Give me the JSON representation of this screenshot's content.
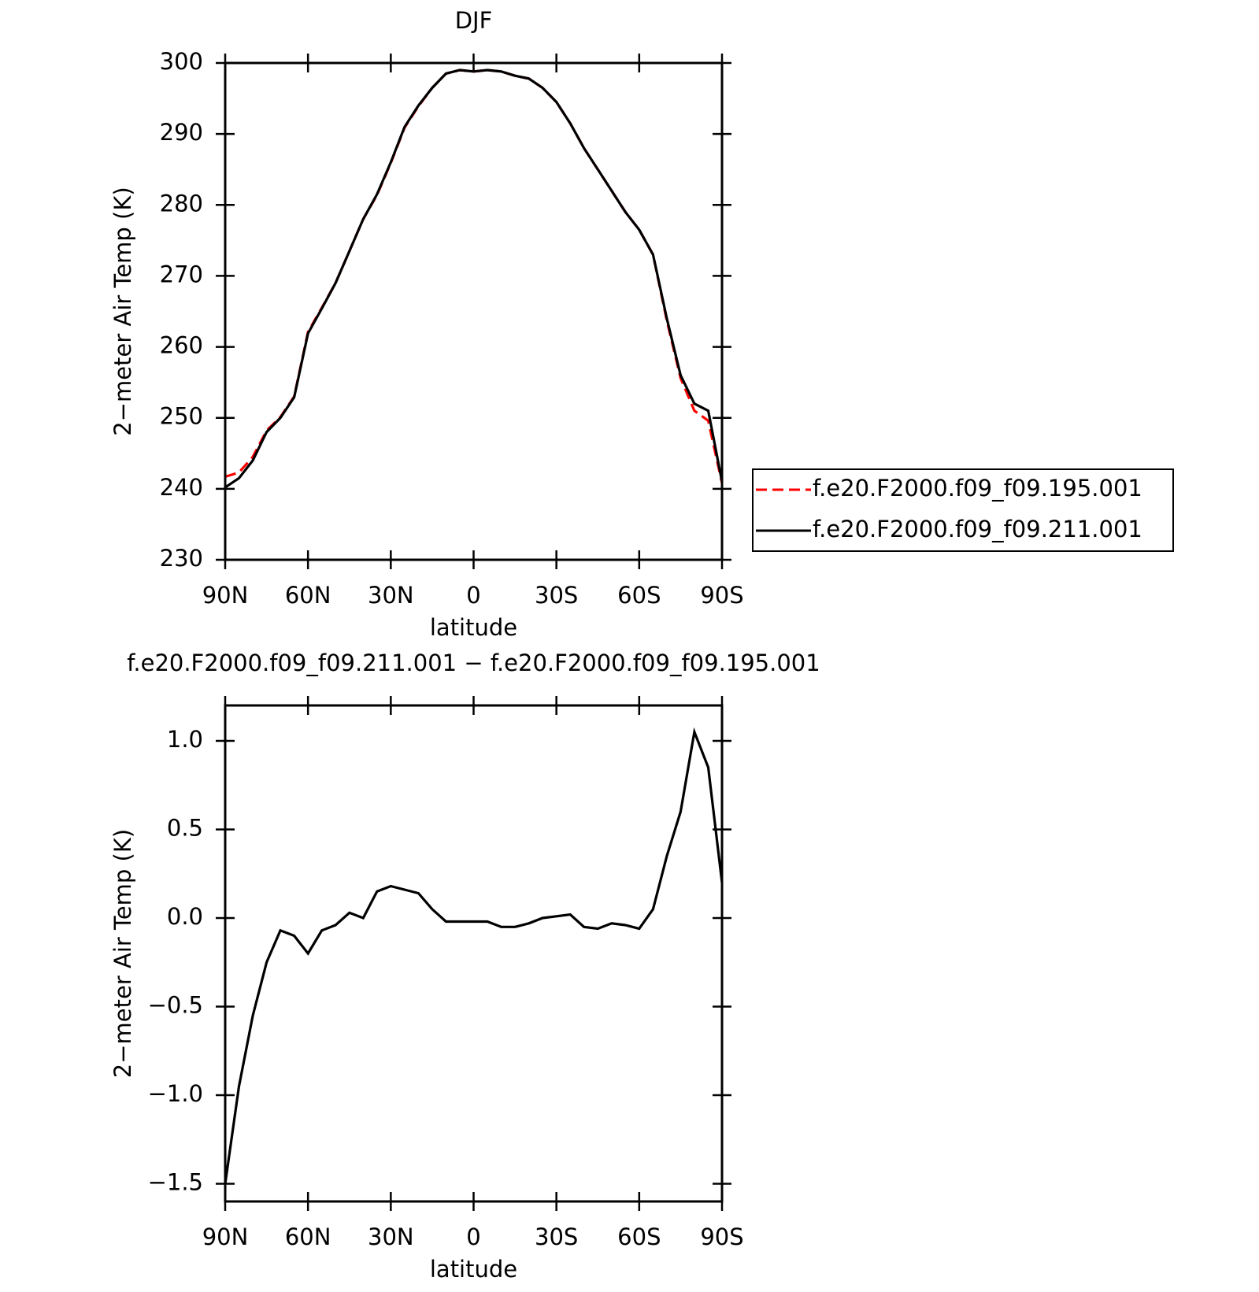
{
  "chart_data": [
    {
      "type": "line",
      "title": "DJF",
      "ylabel": "2−meter Air Temp (K)",
      "xlabel": "latitude",
      "x": [
        90,
        85,
        80,
        75,
        70,
        65,
        60,
        55,
        50,
        45,
        40,
        35,
        30,
        25,
        20,
        15,
        10,
        5,
        0,
        -5,
        -10,
        -15,
        -20,
        -25,
        -30,
        -35,
        -40,
        -45,
        -50,
        -55,
        -60,
        -65,
        -70,
        -75,
        -80,
        -85,
        -90
      ],
      "xlim": [
        90,
        -90
      ],
      "xticks": [
        {
          "value": 90,
          "label": "90N"
        },
        {
          "value": 60,
          "label": "60N"
        },
        {
          "value": 30,
          "label": "30N"
        },
        0,
        {
          "value": -30,
          "label": "30S"
        },
        {
          "value": -60,
          "label": "60S"
        },
        {
          "value": -90,
          "label": "90S"
        }
      ],
      "ylim": [
        230,
        300
      ],
      "yticks": [
        230,
        240,
        250,
        260,
        270,
        280,
        290,
        300
      ],
      "legend": "right",
      "series": [
        {
          "name": "f.e20.F2000.f09_f09.195.001",
          "color": "#ff0000",
          "linestyle": "dashed",
          "values": [
            241.7,
            242.3,
            244.5,
            248.2,
            250.1,
            253,
            262.1,
            265.5,
            269,
            273.5,
            278,
            281.4,
            285.9,
            290.9,
            293.9,
            296.5,
            298.5,
            299,
            298.8,
            299,
            298.8,
            298.2,
            297.8,
            296.5,
            294.5,
            291.5,
            288,
            285,
            282,
            279,
            276.5,
            273,
            263.7,
            255.6,
            251,
            249.6,
            240.8
          ]
        },
        {
          "name": "f.e20.F2000.f09_f09.211.001",
          "color": "#000000",
          "linestyle": "solid",
          "values": [
            240.2,
            241.5,
            244,
            248,
            250,
            252.9,
            261.9,
            265.4,
            269,
            273.5,
            278,
            281.5,
            286,
            291,
            294,
            296.5,
            298.5,
            299,
            298.8,
            299,
            298.8,
            298.2,
            297.8,
            296.5,
            294.5,
            291.5,
            288,
            285,
            282,
            279,
            276.5,
            273,
            264,
            256,
            252,
            251,
            241
          ]
        }
      ]
    },
    {
      "type": "line",
      "title": "f.e20.F2000.f09_f09.211.001 − f.e20.F2000.f09_f09.195.001",
      "ylabel": "2−meter Air Temp (K)",
      "xlabel": "latitude",
      "x": [
        90,
        85,
        80,
        75,
        70,
        65,
        60,
        55,
        50,
        45,
        40,
        35,
        30,
        25,
        20,
        15,
        10,
        5,
        0,
        -5,
        -10,
        -15,
        -20,
        -25,
        -30,
        -35,
        -40,
        -45,
        -50,
        -55,
        -60,
        -65,
        -70,
        -75,
        -80,
        -85,
        -90
      ],
      "xlim": [
        90,
        -90
      ],
      "xticks": [
        {
          "value": 90,
          "label": "90N"
        },
        {
          "value": 60,
          "label": "60N"
        },
        {
          "value": 30,
          "label": "30N"
        },
        0,
        {
          "value": -30,
          "label": "30S"
        },
        {
          "value": -60,
          "label": "60S"
        },
        {
          "value": -90,
          "label": "90S"
        }
      ],
      "ylim": [
        -1.6,
        1.2
      ],
      "yticks": [
        {
          "value": -1.5,
          "label": "−1.5"
        },
        {
          "value": -1,
          "label": "−1.0"
        },
        {
          "value": -0.5,
          "label": "−0.5"
        },
        {
          "value": 0,
          "label": "0.0"
        },
        {
          "value": 0.5,
          "label": "0.5"
        },
        {
          "value": 1,
          "label": "1.0"
        }
      ],
      "color": "#000000",
      "values": [
        -1.5,
        -0.95,
        -0.55,
        -0.25,
        -0.07,
        -0.1,
        -0.2,
        -0.07,
        -0.04,
        0.03,
        0,
        0.15,
        0.18,
        0.16,
        0.14,
        0.05,
        -0.02,
        -0.02,
        -0.02,
        -0.02,
        -0.05,
        -0.05,
        -0.03,
        0,
        0.01,
        0.02,
        -0.05,
        -0.06,
        -0.03,
        -0.04,
        -0.06,
        0.05,
        0.35,
        0.6,
        1.05,
        0.85,
        0.2
      ]
    }
  ]
}
